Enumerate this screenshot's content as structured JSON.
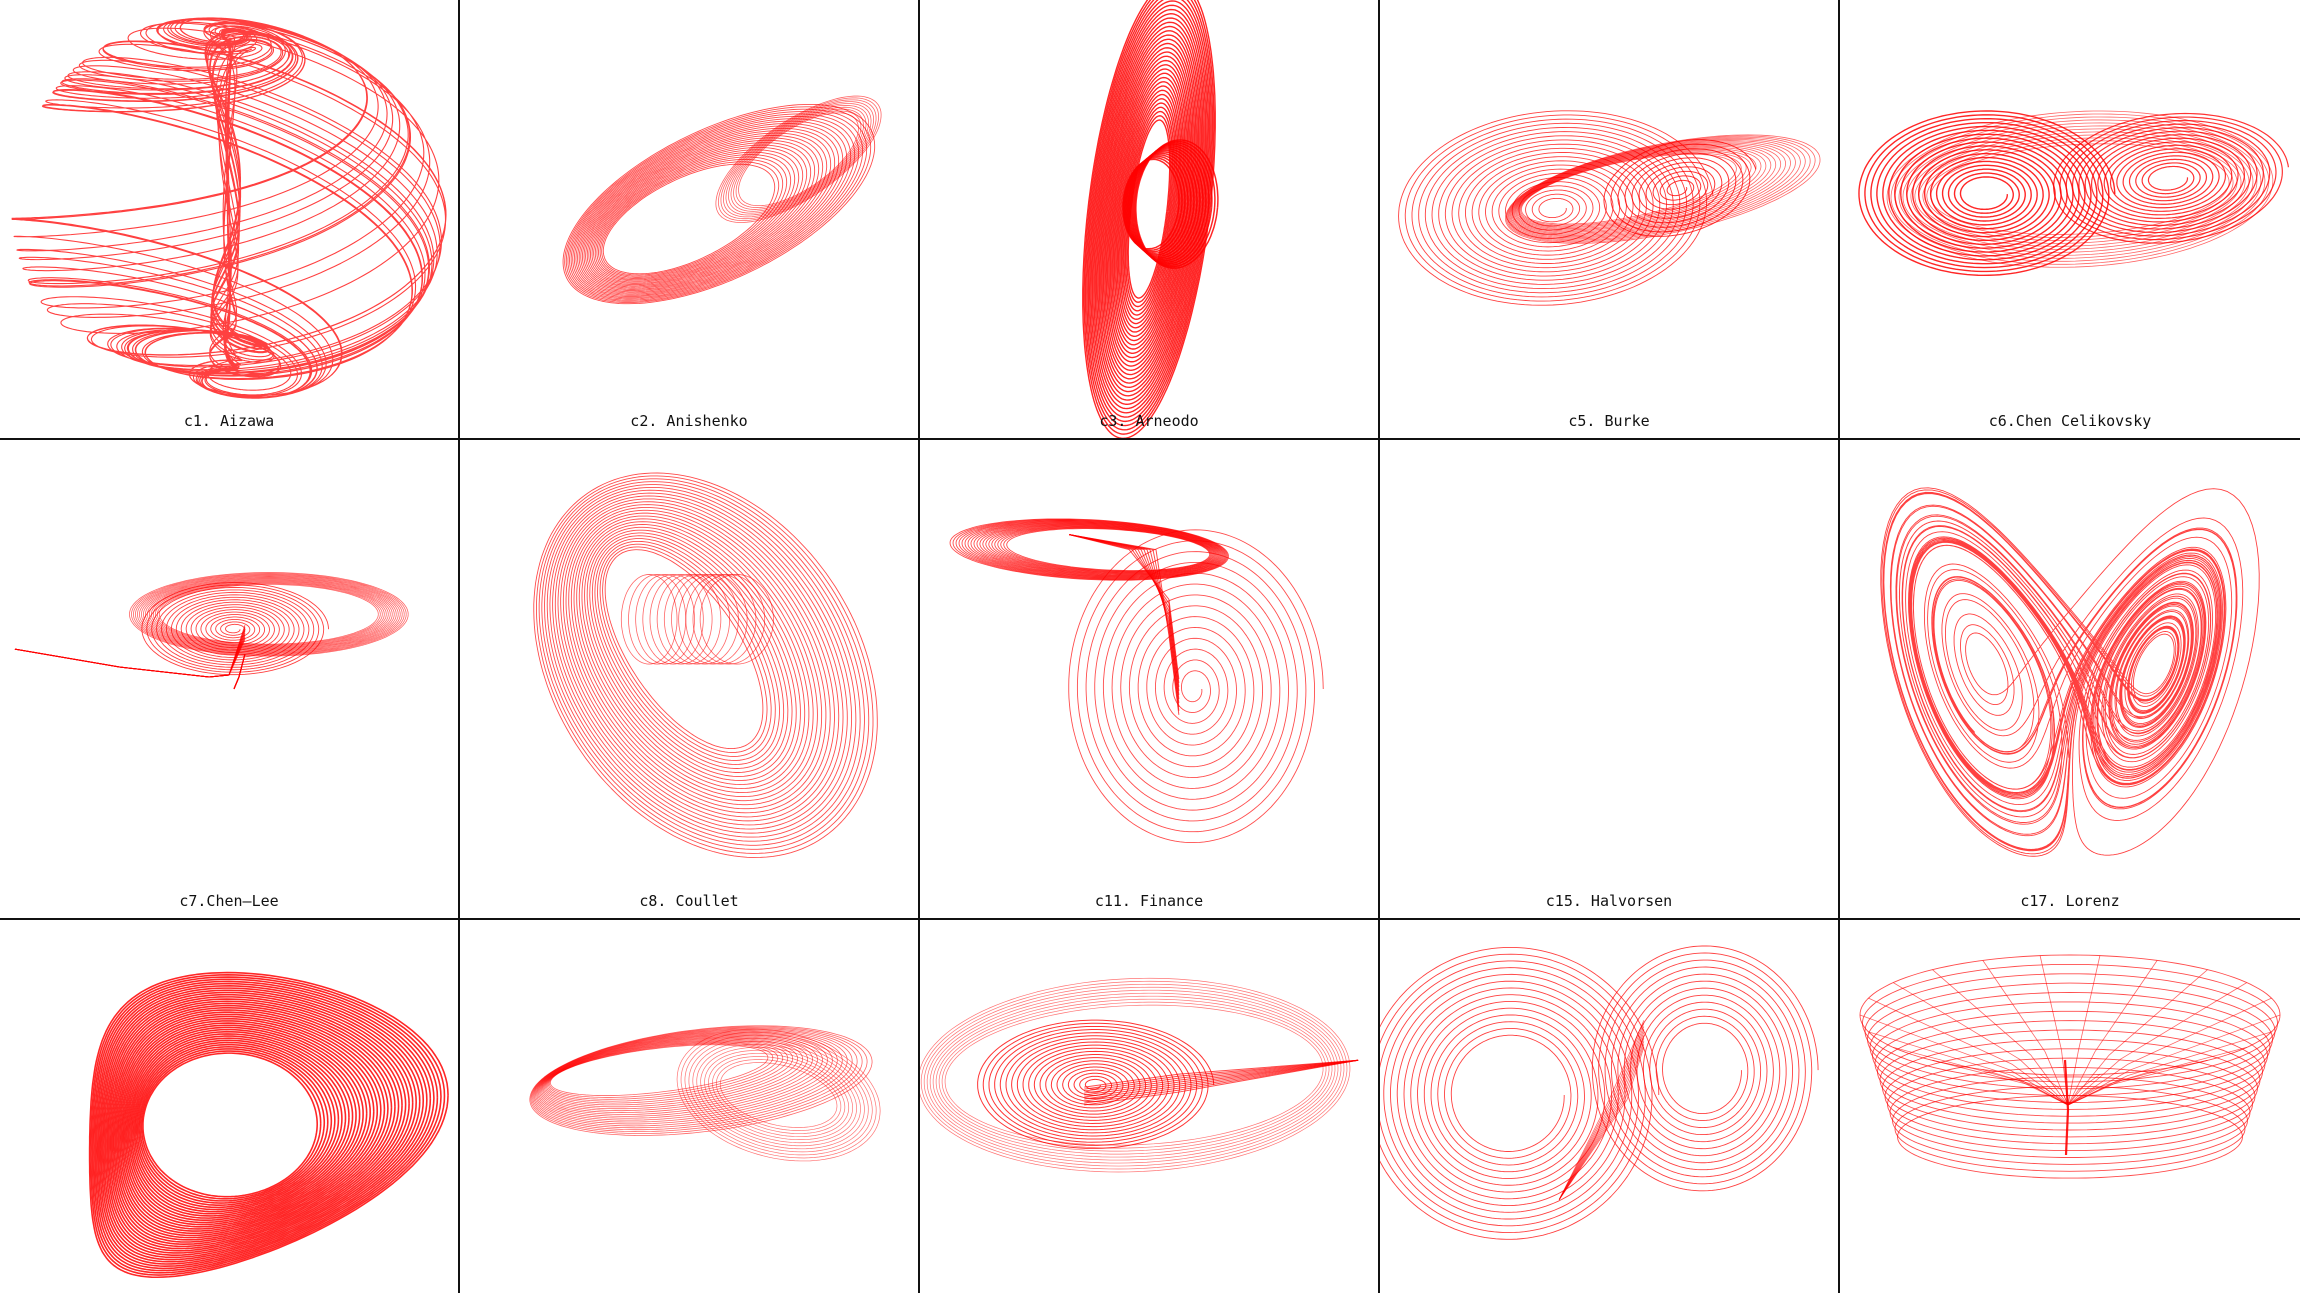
{
  "figure": {
    "line_color": "#ff0000",
    "border_color": "#111111",
    "panels": [
      {
        "id": "aizawa",
        "caption": "c1. Aizawa"
      },
      {
        "id": "anishenko",
        "caption": "c2. Anishenko"
      },
      {
        "id": "arneodo",
        "caption": "c3. Arneodo"
      },
      {
        "id": "burke",
        "caption": "c5. Burke"
      },
      {
        "id": "chen-celikovsky",
        "caption": "c6.Chen Celikovsky"
      },
      {
        "id": "chen-lee",
        "caption": "c7.Chen–Lee"
      },
      {
        "id": "coullet",
        "caption": "c8. Coullet"
      },
      {
        "id": "finance",
        "caption": "c11. Finance"
      },
      {
        "id": "halvorsen",
        "caption": "c15. Halvorsen"
      },
      {
        "id": "lorenz",
        "caption": "c17. Lorenz"
      },
      {
        "id": "panel-11",
        "caption": ""
      },
      {
        "id": "panel-12",
        "caption": ""
      },
      {
        "id": "panel-13",
        "caption": ""
      },
      {
        "id": "panel-14",
        "caption": ""
      },
      {
        "id": "panel-15",
        "caption": ""
      }
    ]
  }
}
